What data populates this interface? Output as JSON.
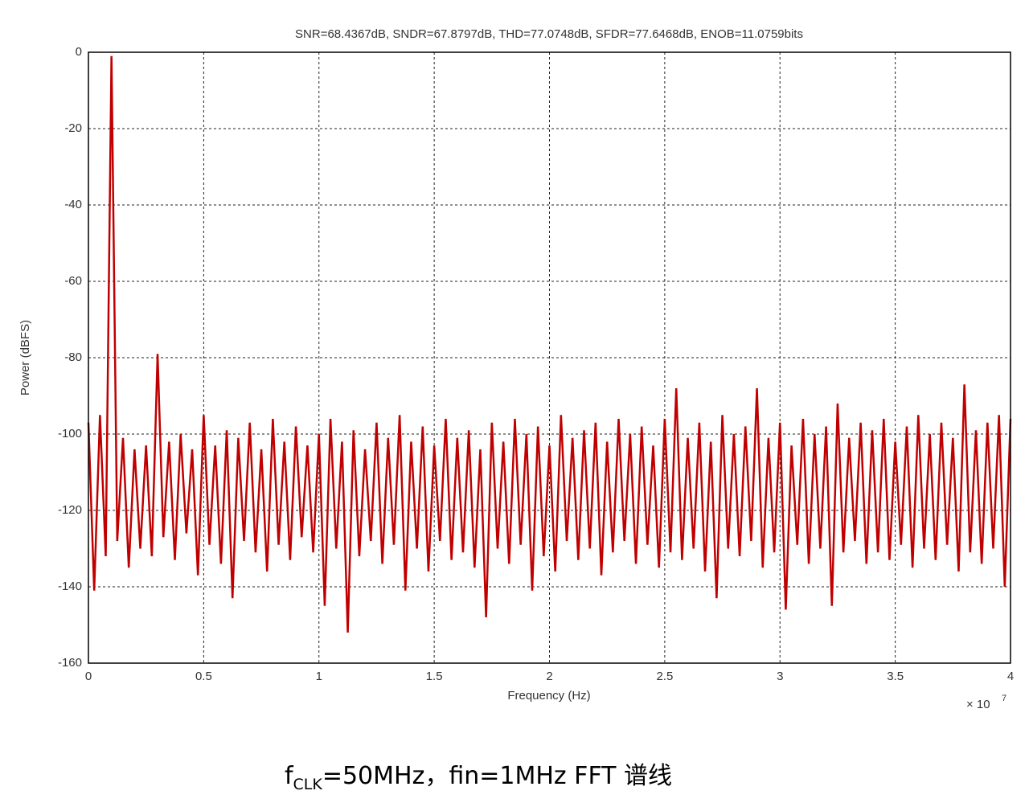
{
  "chart_data": {
    "type": "line",
    "title": "SNR=68.4367dB, SNDR=67.8797dB, THD=77.0748dB, SFDR=77.6468dB, ENOB=11.0759bits",
    "xlabel": "Frequency (Hz)",
    "ylabel": "Power (dBFS)",
    "x_multiplier": "× 10",
    "x_exponent": "7",
    "xlim": [
      0,
      4
    ],
    "xticks": [
      0,
      0.5,
      1,
      1.5,
      2,
      2.5,
      3,
      3.5,
      4
    ],
    "ylim": [
      -160,
      0
    ],
    "yticks": [
      0,
      -20,
      -40,
      -60,
      -80,
      -100,
      -120,
      -140,
      -160
    ],
    "grid": true,
    "series": [
      {
        "color": "#c00000",
        "x": [
          0,
          0.025,
          0.05,
          0.075,
          0.1,
          0.125,
          0.15,
          0.175,
          0.2,
          0.225,
          0.25,
          0.275,
          0.3,
          0.325,
          0.35,
          0.375,
          0.4,
          0.425,
          0.45,
          0.475,
          0.5,
          0.525,
          0.55,
          0.575,
          0.6,
          0.625,
          0.65,
          0.675,
          0.7,
          0.725,
          0.75,
          0.775,
          0.8,
          0.825,
          0.85,
          0.875,
          0.9,
          0.925,
          0.95,
          0.975,
          1,
          1.025,
          1.05,
          1.075,
          1.1,
          1.125,
          1.15,
          1.175,
          1.2,
          1.225,
          1.25,
          1.275,
          1.3,
          1.325,
          1.35,
          1.375,
          1.4,
          1.425,
          1.45,
          1.475,
          1.5,
          1.525,
          1.55,
          1.575,
          1.6,
          1.625,
          1.65,
          1.675,
          1.7,
          1.725,
          1.75,
          1.775,
          1.8,
          1.825,
          1.85,
          1.875,
          1.9,
          1.925,
          1.95,
          1.975,
          2,
          2.025,
          2.05,
          2.075,
          2.1,
          2.125,
          2.15,
          2.175,
          2.2,
          2.225,
          2.25,
          2.275,
          2.3,
          2.325,
          2.35,
          2.375,
          2.4,
          2.425,
          2.45,
          2.475,
          2.5,
          2.525,
          2.55,
          2.575,
          2.6,
          2.625,
          2.65,
          2.675,
          2.7,
          2.725,
          2.75,
          2.775,
          2.8,
          2.825,
          2.85,
          2.875,
          2.9,
          2.925,
          2.95,
          2.975,
          3,
          3.025,
          3.05,
          3.075,
          3.1,
          3.125,
          3.15,
          3.175,
          3.2,
          3.225,
          3.25,
          3.275,
          3.3,
          3.325,
          3.35,
          3.375,
          3.4,
          3.425,
          3.45,
          3.475,
          3.5,
          3.525,
          3.55,
          3.575,
          3.6,
          3.625,
          3.65,
          3.675,
          3.7,
          3.725,
          3.75,
          3.775,
          3.8,
          3.825,
          3.85,
          3.875,
          3.9,
          3.925,
          3.95,
          3.975,
          4
        ],
        "values": [
          -97,
          -141,
          -95,
          -132,
          -1,
          -128,
          -101,
          -135,
          -104,
          -130,
          -103,
          -132,
          -79,
          -127,
          -102,
          -133,
          -100,
          -126,
          -104,
          -137,
          -95,
          -129,
          -103,
          -134,
          -99,
          -143,
          -101,
          -128,
          -97,
          -131,
          -104,
          -136,
          -96,
          -129,
          -102,
          -133,
          -98,
          -127,
          -103,
          -131,
          -100,
          -145,
          -96,
          -130,
          -102,
          -152,
          -99,
          -132,
          -104,
          -128,
          -97,
          -134,
          -101,
          -129,
          -95,
          -141,
          -102,
          -130,
          -98,
          -136,
          -103,
          -128,
          -96,
          -133,
          -101,
          -131,
          -99,
          -135,
          -104,
          -148,
          -97,
          -130,
          -102,
          -134,
          -96,
          -129,
          -100,
          -141,
          -98,
          -132,
          -103,
          -136,
          -95,
          -128,
          -101,
          -133,
          -99,
          -130,
          -97,
          -137,
          -102,
          -131,
          -96,
          -128,
          -100,
          -134,
          -98,
          -129,
          -103,
          -135,
          -96,
          -131,
          -88,
          -133,
          -101,
          -130,
          -97,
          -136,
          -102,
          -143,
          -95,
          -130,
          -100,
          -132,
          -98,
          -128,
          -88,
          -135,
          -101,
          -131,
          -97,
          -146,
          -103,
          -129,
          -96,
          -134,
          -100,
          -130,
          -98,
          -145,
          -92,
          -131,
          -101,
          -128,
          -97,
          -134,
          -99,
          -131,
          -96,
          -133,
          -102,
          -129,
          -98,
          -135,
          -95,
          -130,
          -100,
          -133,
          -97,
          -129,
          -101,
          -136,
          -87,
          -131,
          -99,
          -134,
          -97,
          -130,
          -95,
          -140,
          -96
        ]
      }
    ]
  },
  "caption": {
    "f": "f",
    "sub": "CLK",
    "rest": "=50MHz，fin=1MHz FFT  谱线"
  }
}
